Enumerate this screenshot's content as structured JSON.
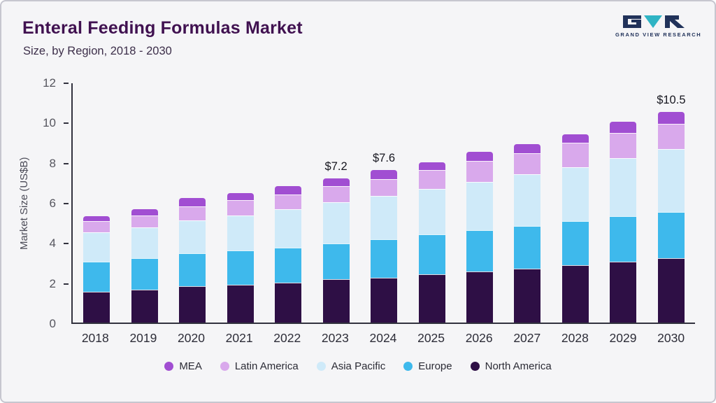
{
  "header": {
    "title": "Enteral Feeding Formulas Market",
    "subtitle": "Size, by Region, 2018 - 2030",
    "logo_text": "GRAND VIEW RESEARCH"
  },
  "brand": {
    "logo_navy": "#21325a",
    "logo_teal": "#2fb4c4"
  },
  "chart_data": {
    "type": "bar",
    "stacked": true,
    "title": "Enteral Feeding Formulas Market Size, by Region, 2018 - 2030",
    "xlabel": "",
    "ylabel": "Market Size (US$B)",
    "ylim": [
      0,
      12
    ],
    "yticks": [
      0,
      2,
      4,
      6,
      8,
      10,
      12
    ],
    "grid": false,
    "legend_position": "bottom",
    "categories": [
      "2018",
      "2019",
      "2020",
      "2021",
      "2022",
      "2023",
      "2024",
      "2025",
      "2026",
      "2027",
      "2028",
      "2029",
      "2030"
    ],
    "series": [
      {
        "name": "North America",
        "color": "#2e0f45",
        "values": [
          1.55,
          1.65,
          1.8,
          1.9,
          2.0,
          2.15,
          2.25,
          2.4,
          2.55,
          2.7,
          2.85,
          3.05,
          3.2
        ]
      },
      {
        "name": "Europe",
        "color": "#3eb9ec",
        "values": [
          1.5,
          1.55,
          1.65,
          1.7,
          1.75,
          1.8,
          1.9,
          2.0,
          2.05,
          2.1,
          2.2,
          2.25,
          2.3
        ]
      },
      {
        "name": "Asia Pacific",
        "color": "#cfeaf9",
        "values": [
          1.45,
          1.55,
          1.65,
          1.75,
          1.9,
          2.05,
          2.15,
          2.25,
          2.4,
          2.6,
          2.7,
          2.9,
          3.15
        ]
      },
      {
        "name": "Latin America",
        "color": "#d9a9ec",
        "values": [
          0.55,
          0.6,
          0.7,
          0.75,
          0.75,
          0.8,
          0.85,
          0.95,
          1.05,
          1.05,
          1.2,
          1.25,
          1.25
        ]
      },
      {
        "name": "MEA",
        "color": "#a14ed2",
        "values": [
          0.25,
          0.3,
          0.4,
          0.35,
          0.4,
          0.4,
          0.45,
          0.4,
          0.45,
          0.45,
          0.45,
          0.55,
          0.6
        ]
      }
    ],
    "totals": [
      5.3,
      5.65,
      6.2,
      6.45,
      6.8,
      7.2,
      7.6,
      8.0,
      8.5,
      8.9,
      9.4,
      10.0,
      10.5
    ],
    "annotations": [
      {
        "category": "2023",
        "label": "$7.2"
      },
      {
        "category": "2024",
        "label": "$7.6"
      },
      {
        "category": "2030",
        "label": "$10.5"
      }
    ],
    "legend": [
      "MEA",
      "Latin America",
      "Asia Pacific",
      "Europe",
      "North America"
    ]
  }
}
